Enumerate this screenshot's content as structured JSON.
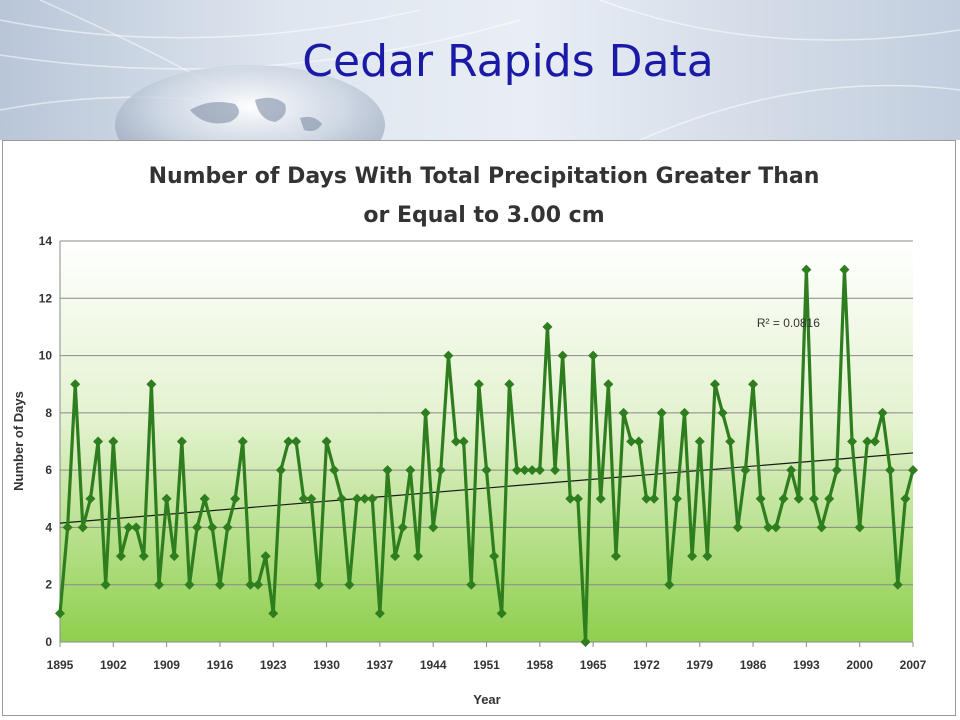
{
  "slide": {
    "title": "Cedar Rapids Data"
  },
  "chart_data": {
    "type": "line",
    "title_lines": [
      "Number of Days With Total Precipitation Greater Than",
      "or Equal to 3.00 cm"
    ],
    "xlabel": "Year",
    "ylabel": "Number of Days",
    "xlim": [
      1895,
      2007
    ],
    "ylim": [
      0,
      14
    ],
    "x_ticks": [
      1895,
      1902,
      1909,
      1916,
      1923,
      1930,
      1937,
      1944,
      1951,
      1958,
      1965,
      1972,
      1979,
      1986,
      1993,
      2000,
      2007
    ],
    "y_ticks": [
      0,
      2,
      4,
      6,
      8,
      10,
      12,
      14
    ],
    "grid": "horizontal",
    "series_color": "#2e7d1e",
    "trendline_color": "#1a1a1a",
    "x_start": 1895,
    "values": [
      1,
      4,
      9,
      4,
      5,
      7,
      2,
      7,
      3,
      4,
      4,
      3,
      9,
      2,
      5,
      3,
      7,
      2,
      4,
      5,
      4,
      2,
      4,
      5,
      7,
      2,
      2,
      3,
      1,
      6,
      7,
      7,
      5,
      5,
      2,
      7,
      6,
      5,
      2,
      5,
      5,
      5,
      1,
      6,
      3,
      4,
      6,
      3,
      8,
      4,
      6,
      10,
      7,
      7,
      2,
      9,
      6,
      3,
      1,
      9,
      6,
      6,
      6,
      6,
      11,
      6,
      10,
      5,
      5,
      0,
      10,
      5,
      9,
      3,
      8,
      7,
      7,
      5,
      5,
      8,
      2,
      5,
      8,
      3,
      7,
      3,
      9,
      8,
      7,
      4,
      6,
      9,
      5,
      4,
      4,
      5,
      6,
      5,
      13,
      5,
      4,
      5,
      6,
      13,
      7,
      4,
      7,
      7,
      8,
      6,
      2,
      5,
      6
    ],
    "trendline": {
      "start": [
        1895,
        4.15
      ],
      "end": [
        2007,
        6.6
      ]
    },
    "annotation": {
      "text": "R² = 0.0816",
      "x": 1986.5,
      "y": 11.0
    }
  }
}
